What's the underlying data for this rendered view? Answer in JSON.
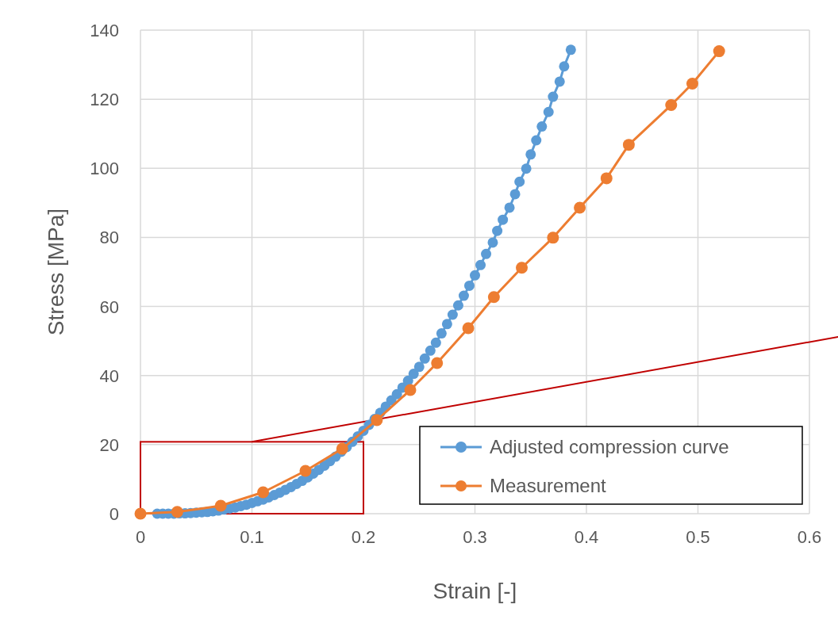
{
  "chart_data": {
    "type": "line",
    "xlabel": "Strain [-]",
    "ylabel": "Stress [MPa]",
    "xlim": [
      0,
      0.6
    ],
    "xticks": [
      0,
      0.1,
      0.2,
      0.3,
      0.4,
      0.5,
      0.6
    ],
    "ylim": [
      0,
      140
    ],
    "yticks": [
      0,
      20,
      40,
      60,
      80,
      100,
      120,
      140
    ],
    "grid": true,
    "legend": "bottom right",
    "marker": "circle",
    "line_style": "solid",
    "series": [
      {
        "name": "Adjusted compression curve",
        "color": "#5b9bd5",
        "x": [
          0.015,
          0.02,
          0.025,
          0.03,
          0.035,
          0.04,
          0.045,
          0.05,
          0.055,
          0.06,
          0.065,
          0.07,
          0.075,
          0.08,
          0.085,
          0.09,
          0.095,
          0.1,
          0.105,
          0.11,
          0.115,
          0.12,
          0.125,
          0.13,
          0.135,
          0.14,
          0.145,
          0.15,
          0.155,
          0.16,
          0.165,
          0.17,
          0.175,
          0.18,
          0.185,
          0.19,
          0.195,
          0.2,
          0.205,
          0.21,
          0.215,
          0.22,
          0.225,
          0.23,
          0.235,
          0.24,
          0.245,
          0.25,
          0.255,
          0.26,
          0.265,
          0.27,
          0.275,
          0.28,
          0.285,
          0.29,
          0.295,
          0.3,
          0.305,
          0.31,
          0.316,
          0.32,
          0.325,
          0.331,
          0.336,
          0.34,
          0.346,
          0.35,
          0.355,
          0.36,
          0.366,
          0.37,
          0.376,
          0.38,
          0.386
        ],
        "values": [
          0,
          0,
          0,
          0,
          0.1,
          0.1,
          0.2,
          0.3,
          0.4,
          0.5,
          0.7,
          0.9,
          1.2,
          1.5,
          1.8,
          2.2,
          2.6,
          3.1,
          3.6,
          4.1,
          4.7,
          5.4,
          6.1,
          6.9,
          7.7,
          8.6,
          9.5,
          10.5,
          11.6,
          12.7,
          13.9,
          15.2,
          16.5,
          17.9,
          19.3,
          20.8,
          22.4,
          24.0,
          25.7,
          27.4,
          29.2,
          31.0,
          32.8,
          34.6,
          36.5,
          38.5,
          40.5,
          42.5,
          44.9,
          47.2,
          49.5,
          52.2,
          54.9,
          57.6,
          60.3,
          63.1,
          66.0,
          69.0,
          72.0,
          75.2,
          78.5,
          81.9,
          85.1,
          88.6,
          92.5,
          96.1,
          99.9,
          104.0,
          108.1,
          112.1,
          116.3,
          120.7,
          125.1,
          129.5,
          134.3
        ]
      },
      {
        "name": "Measurement",
        "color": "#ed7d31",
        "x": [
          0,
          0.033,
          0.072,
          0.11,
          0.148,
          0.181,
          0.212,
          0.242,
          0.266,
          0.294,
          0.317,
          0.342,
          0.37,
          0.394,
          0.418,
          0.438,
          0.476,
          0.495,
          0.519
        ],
        "values": [
          0,
          0.5,
          2.3,
          6.2,
          12.4,
          18.8,
          27.1,
          35.8,
          43.6,
          53.7,
          62.7,
          71.2,
          79.9,
          88.6,
          97.1,
          106.8,
          118.3,
          124.5,
          133.9
        ]
      }
    ]
  }
}
